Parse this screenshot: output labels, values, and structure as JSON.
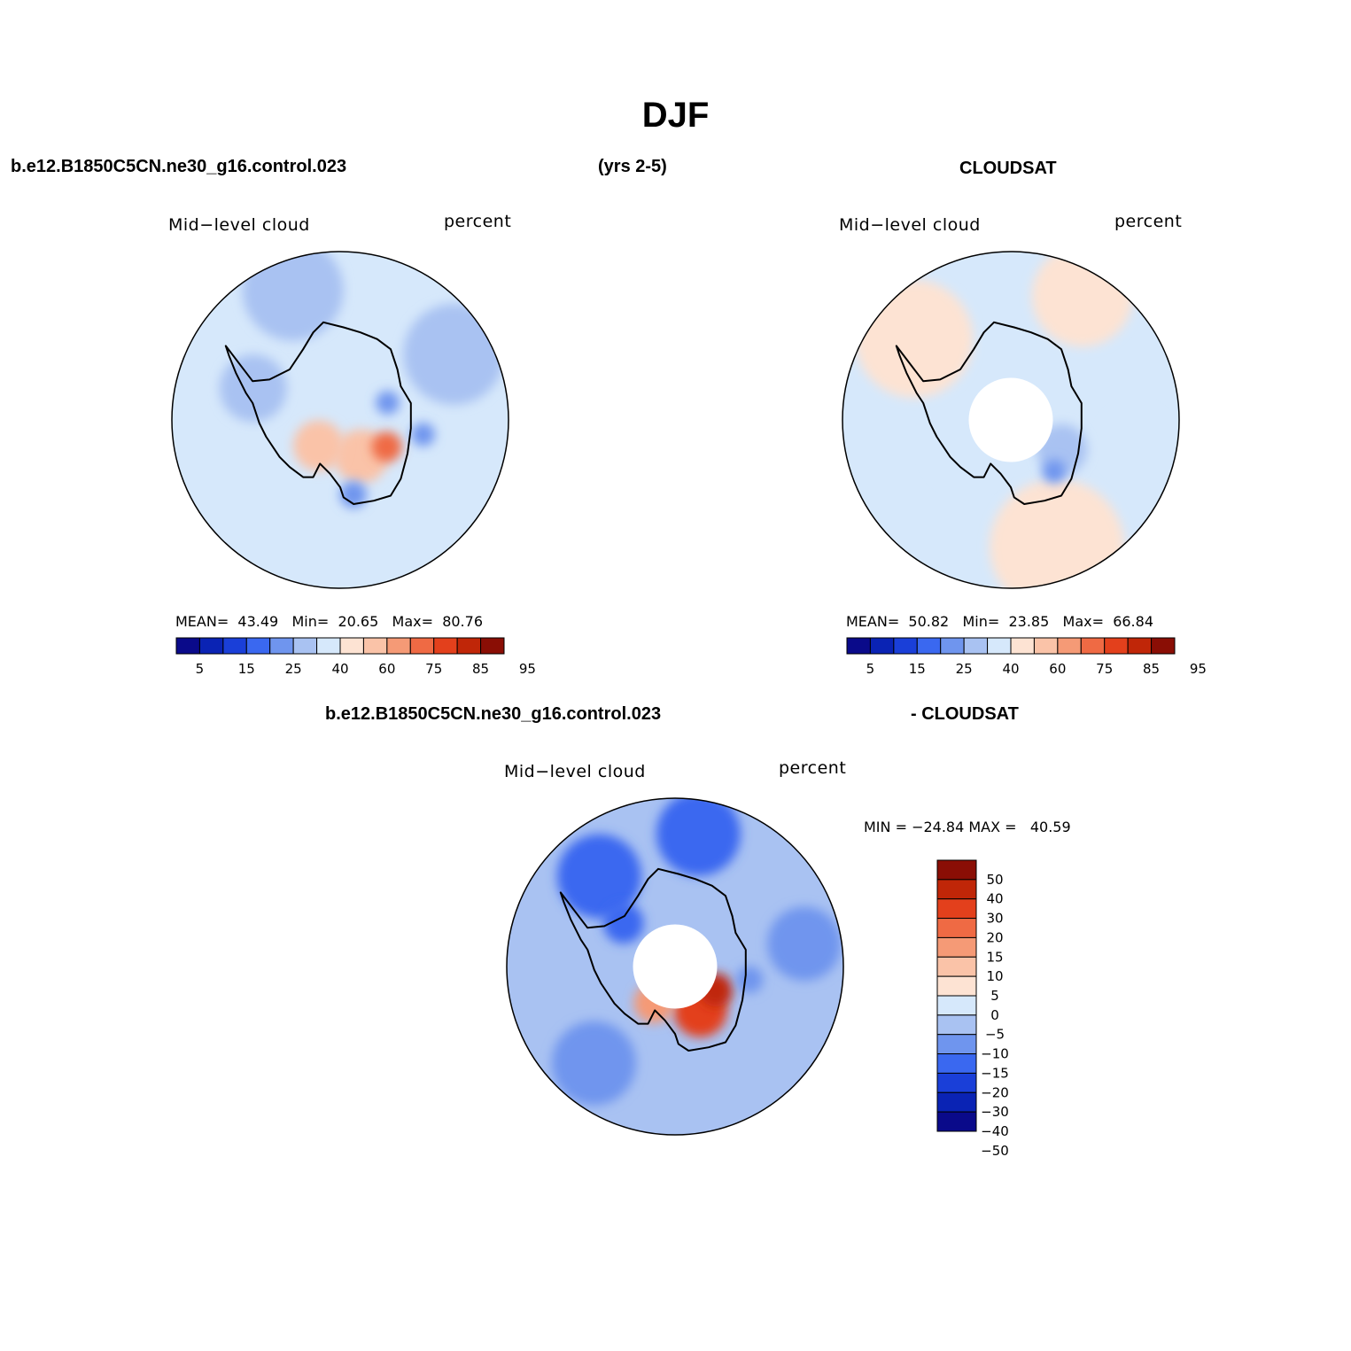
{
  "page": {
    "title": "DJF",
    "model_case": "b.e12.B1850C5CN.ne30_g16.control.023",
    "years": "(yrs 2-5)",
    "obs_name": "CLOUDSAT",
    "diff_left": "b.e12.B1850C5CN.ne30_g16.control.023",
    "diff_right": "- CLOUDSAT"
  },
  "colors": {
    "abs_palette": [
      "#0a0a8a",
      "#0a23b4",
      "#1a3fd8",
      "#3a68f0",
      "#6f95ee",
      "#a9c2f2",
      "#d6e8fb",
      "#fde3d3",
      "#fac3a8",
      "#f59a76",
      "#ef6a44",
      "#e3401c",
      "#c02608",
      "#8a0e05"
    ],
    "diff_palette": [
      "#0a0a8a",
      "#0a23b4",
      "#1a3fd8",
      "#3a68f0",
      "#6f95ee",
      "#a9c2f2",
      "#d6e8fb",
      "#fde3d3",
      "#fac3a8",
      "#f59a76",
      "#ef6a44",
      "#e3401c",
      "#c02608",
      "#8a0e05"
    ],
    "continent_outline": "#000000"
  },
  "chart_data": [
    {
      "type": "heatmap",
      "id": "model",
      "projection": "south polar stereographic",
      "left_label": "Mid−level cloud",
      "right_label": "percent",
      "stats": {
        "mean_label": "MEAN=",
        "mean": "43.49",
        "min_label": "Min=",
        "min": "20.65",
        "max_label": "Max=",
        "max": "80.76"
      },
      "colorbar_ticks": [
        "5",
        "15",
        "25",
        "40",
        "60",
        "75",
        "85",
        "95"
      ],
      "colorbar_levels": [
        5,
        10,
        15,
        20,
        25,
        30,
        40,
        50,
        60,
        70,
        75,
        80,
        85,
        90,
        95
      ],
      "blobs": [
        {
          "lon": 200,
          "colat": 0.82,
          "r": 0.3,
          "level": 5
        },
        {
          "lon": 120,
          "colat": 0.78,
          "r": 0.3,
          "level": 5
        },
        {
          "lon": 250,
          "colat": 0.55,
          "r": 0.2,
          "level": 5
        },
        {
          "lon": 30,
          "colat": 0.25,
          "r": 0.16,
          "level": 8
        },
        {
          "lon": 60,
          "colat": 0.32,
          "r": 0.09,
          "level": 10
        },
        {
          "lon": 320,
          "colat": 0.2,
          "r": 0.15,
          "level": 8
        },
        {
          "lon": 10,
          "colat": 0.45,
          "r": 0.08,
          "level": 4
        },
        {
          "lon": 110,
          "colat": 0.3,
          "r": 0.07,
          "level": 4
        },
        {
          "lon": 80,
          "colat": 0.5,
          "r": 0.07,
          "level": 4
        }
      ]
    },
    {
      "type": "heatmap",
      "id": "obs",
      "projection": "south polar stereographic",
      "left_label": "Mid−level cloud",
      "right_label": "percent",
      "stats": {
        "mean_label": "MEAN=",
        "mean": "50.82",
        "min_label": "Min=",
        "min": "23.85",
        "max_label": "Max=",
        "max": "66.84"
      },
      "colorbar_ticks": [
        "5",
        "15",
        "25",
        "40",
        "60",
        "75",
        "85",
        "95"
      ],
      "colorbar_levels": [
        5,
        10,
        15,
        20,
        25,
        30,
        40,
        50,
        60,
        70,
        75,
        80,
        85,
        90,
        95
      ],
      "blobs": [
        {
          "lon": 230,
          "colat": 0.75,
          "r": 0.35,
          "level": 7
        },
        {
          "lon": 20,
          "colat": 0.8,
          "r": 0.4,
          "level": 7
        },
        {
          "lon": 150,
          "colat": 0.85,
          "r": 0.3,
          "level": 7
        },
        {
          "lon": 300,
          "colat": 0.3,
          "r": 0.25,
          "level": 6
        },
        {
          "lon": 60,
          "colat": 0.35,
          "r": 0.15,
          "level": 5
        },
        {
          "lon": 40,
          "colat": 0.4,
          "r": 0.07,
          "level": 4
        },
        {
          "lon": 80,
          "colat": 0.75,
          "r": 0.2,
          "level": 6
        }
      ]
    },
    {
      "type": "heatmap",
      "id": "diff",
      "projection": "south polar stereographic",
      "left_label": "Mid−level cloud",
      "right_label": "percent",
      "stats_line": "MIN = −24.84 MAX =   40.59",
      "colorbar_ticks": [
        "50",
        "40",
        "30",
        "20",
        "15",
        "10",
        "5",
        "0",
        "−5",
        "−10",
        "−15",
        "−20",
        "−30",
        "−40",
        "−50"
      ],
      "colorbar_levels": [
        -50,
        -40,
        -30,
        -20,
        -15,
        -10,
        -5,
        0,
        5,
        10,
        15,
        20,
        30,
        40,
        50
      ],
      "blobs": [
        {
          "lon": 220,
          "colat": 0.7,
          "r": 0.25,
          "level": 3
        },
        {
          "lon": 170,
          "colat": 0.8,
          "r": 0.25,
          "level": 3
        },
        {
          "lon": 100,
          "colat": 0.78,
          "r": 0.22,
          "level": 4
        },
        {
          "lon": 320,
          "colat": 0.75,
          "r": 0.25,
          "level": 4
        },
        {
          "lon": 30,
          "colat": 0.3,
          "r": 0.16,
          "level": 11
        },
        {
          "lon": 60,
          "colat": 0.28,
          "r": 0.1,
          "level": 12
        },
        {
          "lon": 330,
          "colat": 0.25,
          "r": 0.12,
          "level": 9
        },
        {
          "lon": 230,
          "colat": 0.4,
          "r": 0.12,
          "level": 3
        },
        {
          "lon": 80,
          "colat": 0.45,
          "r": 0.08,
          "level": 4
        }
      ]
    }
  ]
}
